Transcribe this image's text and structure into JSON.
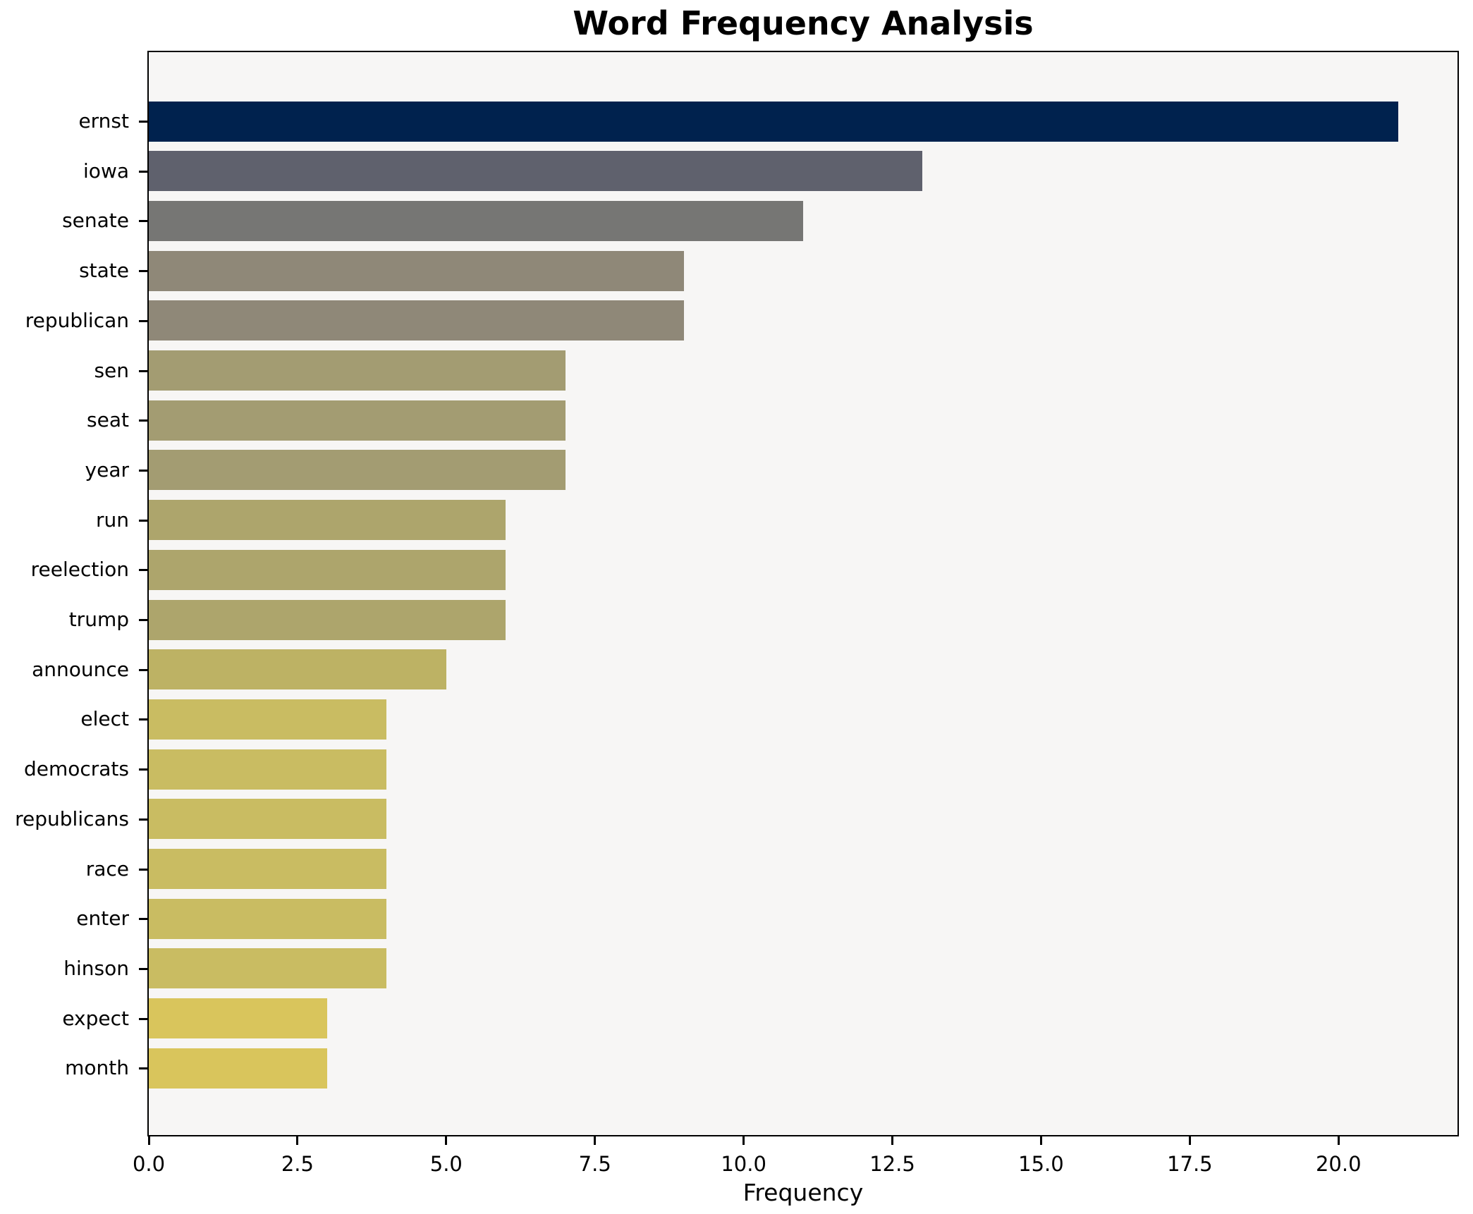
{
  "chart_data": {
    "type": "bar",
    "orientation": "horizontal",
    "title": "Word Frequency Analysis",
    "xlabel": "Frequency",
    "ylabel": "",
    "categories": [
      "ernst",
      "iowa",
      "senate",
      "state",
      "republican",
      "sen",
      "seat",
      "year",
      "run",
      "reelection",
      "trump",
      "announce",
      "elect",
      "democrats",
      "republicans",
      "race",
      "enter",
      "hinson",
      "expect",
      "month"
    ],
    "values": [
      21,
      13,
      11,
      9,
      9,
      7,
      7,
      7,
      6,
      6,
      6,
      5,
      4,
      4,
      4,
      4,
      4,
      4,
      3,
      3
    ],
    "bar_colors": [
      "#00224e",
      "#5f616d",
      "#767674",
      "#8f8878",
      "#8f8878",
      "#a39c72",
      "#a39c72",
      "#a39c72",
      "#ada56c",
      "#ada56c",
      "#ada56c",
      "#bdb264",
      "#c9bc62",
      "#c9bc62",
      "#c9bc62",
      "#c9bc62",
      "#c9bc62",
      "#c9bc62",
      "#d9c55c",
      "#d9c55c"
    ],
    "xticks": [
      "0.0",
      "2.5",
      "5.0",
      "7.5",
      "10.0",
      "12.5",
      "15.0",
      "17.5",
      "20.0"
    ],
    "xtick_values": [
      0,
      2.5,
      5,
      7.5,
      10,
      12.5,
      15,
      17.5,
      20
    ],
    "xlim": [
      0,
      22
    ],
    "grid": false,
    "legend": "none",
    "plot_bg": "#f7f6f5",
    "spine_color": "#000000",
    "title_color": "#000000"
  }
}
